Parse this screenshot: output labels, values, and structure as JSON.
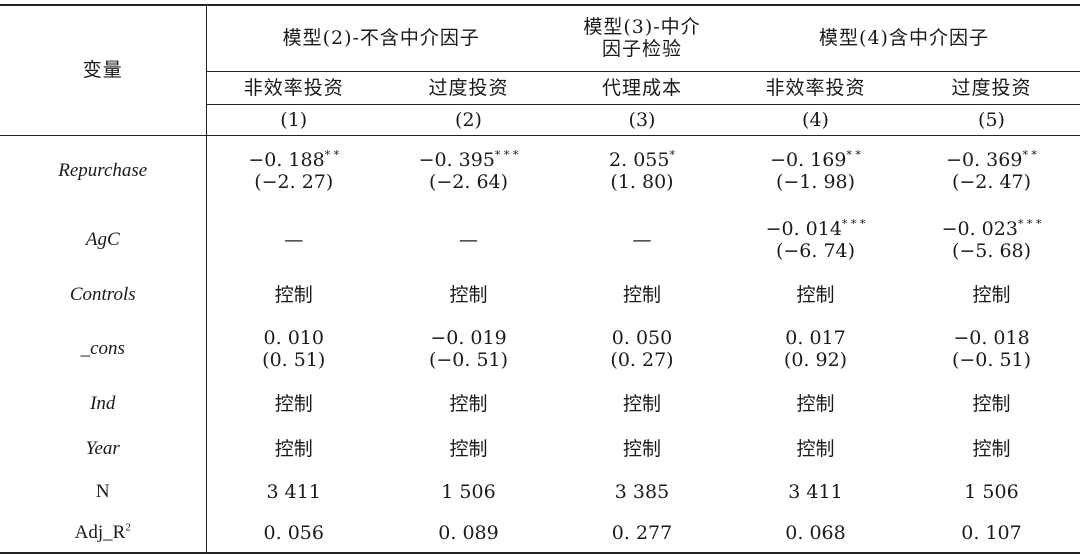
{
  "header": {
    "variable": "变量",
    "model2": "模型(2)-不含中介因子",
    "model3_line1": "模型(3)-中介",
    "model3_line2": "因子检验",
    "model4": "模型(4)含中介因子",
    "subcols": [
      "非效率投资",
      "过度投资",
      "代理成本",
      "非效率投资",
      "过度投资"
    ],
    "colnums": [
      "(1)",
      "(2)",
      "(3)",
      "(4)",
      "(5)"
    ]
  },
  "rows": [
    {
      "label": "Repurchase",
      "cells": [
        [
          "−0. 188",
          "* *",
          "(−2. 27)"
        ],
        [
          "−0. 395",
          "* * *",
          "(−2. 64)"
        ],
        [
          "2. 055",
          "*",
          "(1. 80)"
        ],
        [
          "−0. 169",
          "* *",
          "(−1. 98)"
        ],
        [
          "−0. 369",
          "* *",
          "(−2. 47)"
        ]
      ]
    },
    {
      "label": "AgC",
      "cells": [
        [
          "—",
          "",
          ""
        ],
        [
          "—",
          "",
          ""
        ],
        [
          "—",
          "",
          ""
        ],
        [
          "−0. 014",
          "* * *",
          "(−6. 74)"
        ],
        [
          "−0. 023",
          "* * *",
          "(−5. 68)"
        ]
      ]
    },
    {
      "label": "Controls",
      "cells": [
        [
          "控制",
          "",
          ""
        ],
        [
          "控制",
          "",
          ""
        ],
        [
          "控制",
          "",
          ""
        ],
        [
          "控制",
          "",
          ""
        ],
        [
          "控制",
          "",
          ""
        ]
      ]
    },
    {
      "label": "_cons",
      "cells": [
        [
          "0. 010",
          "",
          "(0. 51)"
        ],
        [
          "−0. 019",
          "",
          "(−0. 51)"
        ],
        [
          "0. 050",
          "",
          "(0. 27)"
        ],
        [
          "0. 017",
          "",
          "(0. 92)"
        ],
        [
          "−0. 018",
          "",
          "(−0. 51)"
        ]
      ]
    },
    {
      "label": "Ind",
      "cells": [
        [
          "控制",
          "",
          ""
        ],
        [
          "控制",
          "",
          ""
        ],
        [
          "控制",
          "",
          ""
        ],
        [
          "控制",
          "",
          ""
        ],
        [
          "控制",
          "",
          ""
        ]
      ]
    },
    {
      "label": "Year",
      "cells": [
        [
          "控制",
          "",
          ""
        ],
        [
          "控制",
          "",
          ""
        ],
        [
          "控制",
          "",
          ""
        ],
        [
          "控制",
          "",
          ""
        ],
        [
          "控制",
          "",
          ""
        ]
      ]
    },
    {
      "label": "N",
      "cells": [
        [
          "3 411",
          "",
          ""
        ],
        [
          "1 506",
          "",
          ""
        ],
        [
          "3 385",
          "",
          ""
        ],
        [
          "3 411",
          "",
          ""
        ],
        [
          "1 506",
          "",
          ""
        ]
      ]
    },
    {
      "label": "Adj_R",
      "label_sup": "2",
      "cells": [
        [
          "0. 056",
          "",
          ""
        ],
        [
          "0. 089",
          "",
          ""
        ],
        [
          "0. 277",
          "",
          ""
        ],
        [
          "0. 068",
          "",
          ""
        ],
        [
          "0. 107",
          "",
          ""
        ]
      ]
    }
  ]
}
